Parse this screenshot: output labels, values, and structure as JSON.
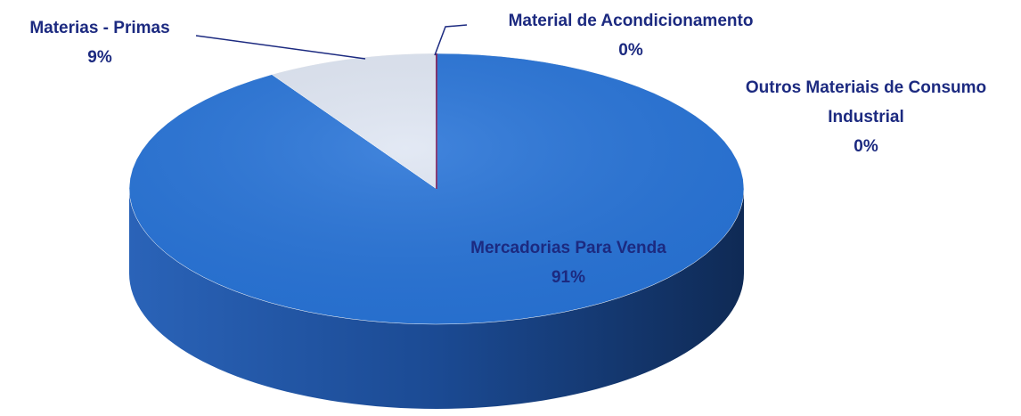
{
  "chart_data": {
    "type": "pie",
    "categories": [
      "Mercadorias Para Venda",
      "Materias - Primas",
      "Material de Acondicionamento",
      "Outros Materiais de Consumo Industrial"
    ],
    "values": [
      91,
      9,
      0,
      0
    ],
    "value_labels": [
      "91%",
      "9%",
      "0%",
      "0%"
    ],
    "colors": [
      "#2874d8",
      "#dfe6f3",
      "#4a2c9c",
      "#7a2a6a"
    ]
  }
}
